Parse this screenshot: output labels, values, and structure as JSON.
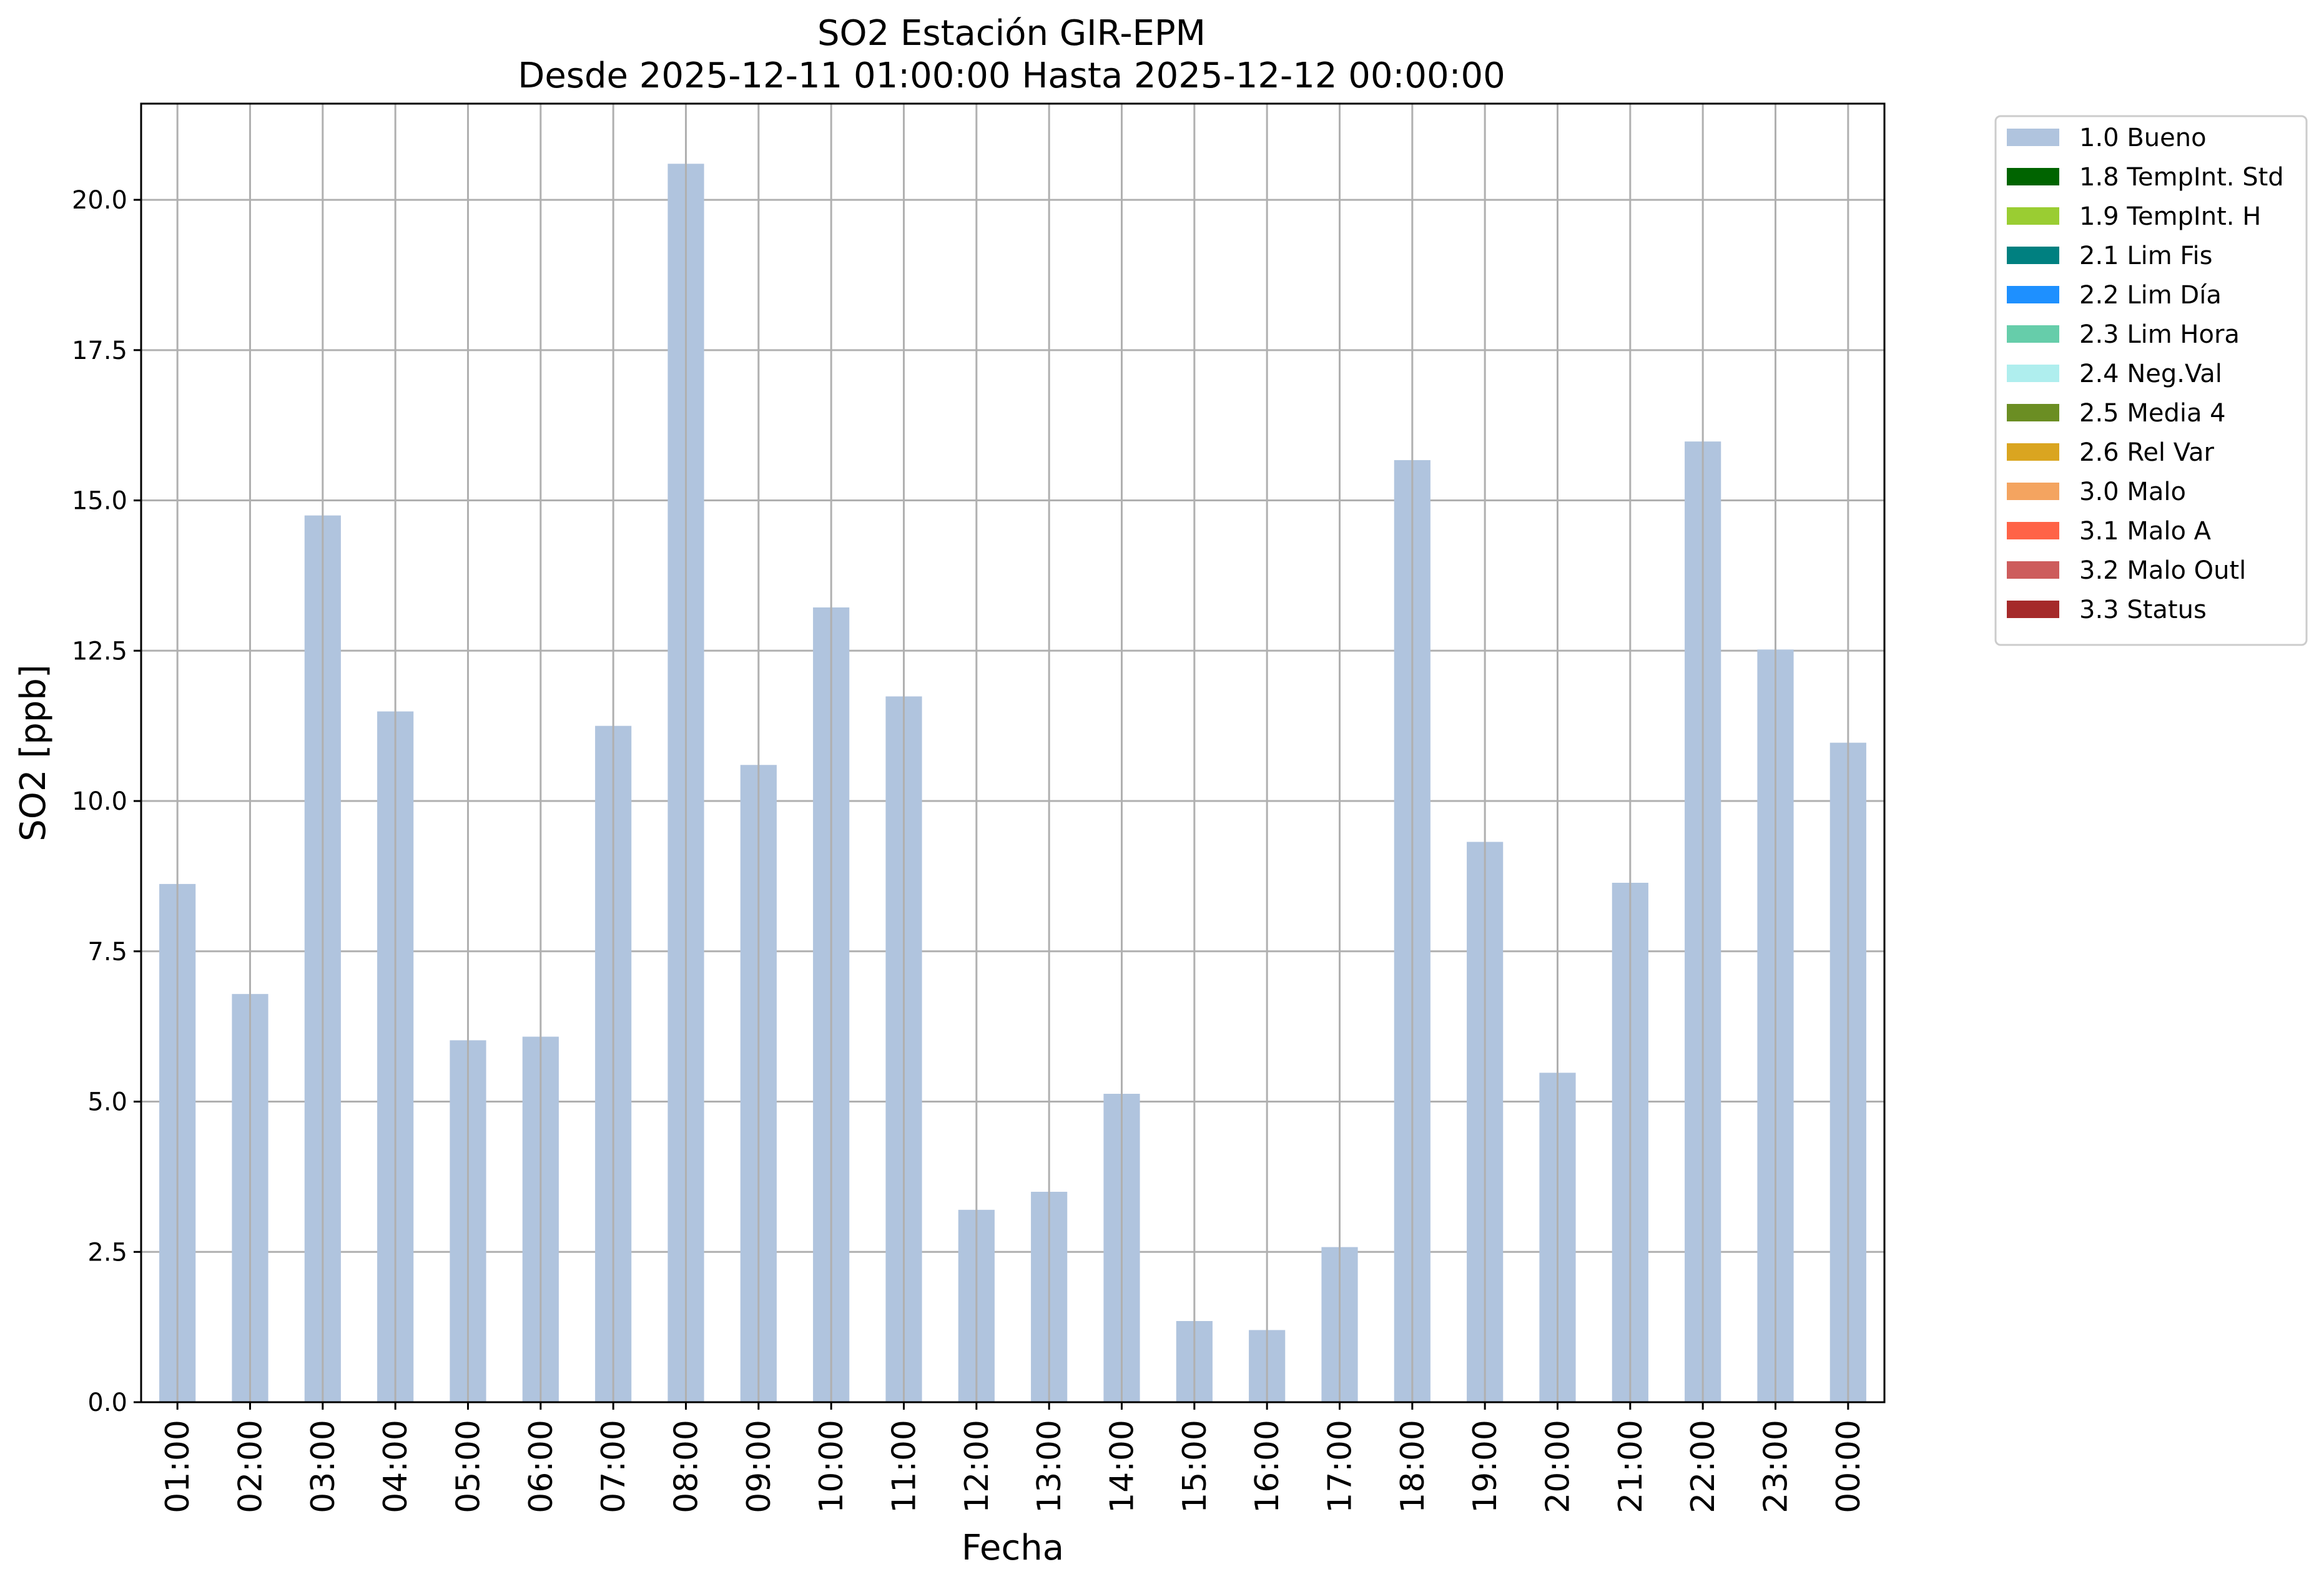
{
  "chart_data": {
    "type": "bar",
    "title": "SO2 Estación GIR-EPM",
    "subtitle": "Desde 2025-12-11 01:00:00 Hasta 2025-12-12 00:00:00",
    "xlabel": "Fecha",
    "ylabel": "SO2 [ppb]",
    "ylim": [
      0,
      21.6
    ],
    "yticks": [
      "0.0",
      "2.5",
      "5.0",
      "7.5",
      "10.0",
      "12.5",
      "15.0",
      "17.5",
      "20.0"
    ],
    "categories": [
      "01:00",
      "02:00",
      "03:00",
      "04:00",
      "05:00",
      "06:00",
      "07:00",
      "08:00",
      "09:00",
      "10:00",
      "11:00",
      "12:00",
      "13:00",
      "14:00",
      "15:00",
      "16:00",
      "17:00",
      "18:00",
      "19:00",
      "20:00",
      "21:00",
      "22:00",
      "23:00",
      "00:00"
    ],
    "series": [
      {
        "name": "1.0 Bueno",
        "color": "#b0c4de",
        "values": [
          8.62,
          6.79,
          14.75,
          11.49,
          6.02,
          6.08,
          11.25,
          20.6,
          10.6,
          13.22,
          11.74,
          3.2,
          3.5,
          5.13,
          1.35,
          1.2,
          2.58,
          15.67,
          9.32,
          5.48,
          8.64,
          15.98,
          12.52,
          10.97
        ]
      }
    ],
    "legend": {
      "placement": "upper-right-outside",
      "entries": [
        {
          "label": "1.0 Bueno",
          "color": "#b0c4de"
        },
        {
          "label": "1.8 TempInt. Std",
          "color": "#006400"
        },
        {
          "label": "1.9 TempInt. H",
          "color": "#9acd32"
        },
        {
          "label": "2.1 Lim Fis",
          "color": "#008080"
        },
        {
          "label": "2.2 Lim Día",
          "color": "#1e90ff"
        },
        {
          "label": "2.3 Lim Hora",
          "color": "#66cdaa"
        },
        {
          "label": "2.4 Neg.Val",
          "color": "#afeeee"
        },
        {
          "label": "2.5 Media 4",
          "color": "#6b8e23"
        },
        {
          "label": "2.6 Rel Var",
          "color": "#daa520"
        },
        {
          "label": "3.0 Malo",
          "color": "#f4a460"
        },
        {
          "label": "3.1 Malo A",
          "color": "#ff6347"
        },
        {
          "label": "3.2 Malo Outl",
          "color": "#cd5c5c"
        },
        {
          "label": "3.3 Status",
          "color": "#a52a2a"
        }
      ]
    },
    "grid": true
  }
}
